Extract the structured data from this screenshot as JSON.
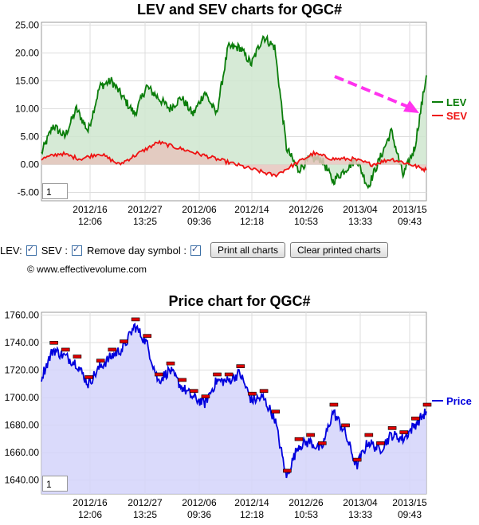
{
  "chart_data": [
    {
      "type": "area",
      "title": "LEV and SEV charts for QGC#",
      "ylim": [
        -6.5,
        25.5
      ],
      "yticks": [
        "25.00",
        "20.00",
        "15.00",
        "10.00",
        "5.00",
        "0.00",
        "-5.00"
      ],
      "ytick_values": [
        25,
        20,
        15,
        10,
        5,
        0,
        -5
      ],
      "xticks": [
        {
          "date": "2012/16",
          "time": "12:06"
        },
        {
          "date": "2012/27",
          "time": "13:25"
        },
        {
          "date": "2012/06",
          "time": "09:36"
        },
        {
          "date": "2012/14",
          "time": "12:18"
        },
        {
          "date": "2012/26",
          "time": "10:53"
        },
        {
          "date": "2013/04",
          "time": "13:33"
        },
        {
          "date": "2013/15",
          "time": "09:43"
        }
      ],
      "grid": true,
      "legend_position": "right",
      "zoom_value": "1",
      "series": [
        {
          "name": "LEV",
          "color": "#0a7d0a",
          "fill": "#cfe6cf",
          "x": [
            0,
            3,
            6,
            9,
            12,
            15,
            18,
            21,
            24,
            27,
            30,
            33,
            36,
            39,
            42,
            45,
            48,
            51,
            54,
            57,
            60,
            63,
            66,
            69,
            72,
            75,
            78,
            81,
            84,
            87,
            90,
            93,
            96,
            99
          ],
          "values": [
            2,
            7,
            5,
            10,
            6,
            14,
            15,
            12,
            9,
            14,
            12,
            10,
            12,
            9,
            13,
            9,
            21,
            21,
            18,
            23,
            21,
            3,
            -1,
            1,
            1,
            -3,
            -1,
            1,
            -4,
            1,
            6,
            -2,
            3,
            16
          ]
        },
        {
          "name": "SEV",
          "color": "#ee1111",
          "fill": "#e5c5bd",
          "x": [
            0,
            5,
            10,
            15,
            20,
            25,
            30,
            35,
            40,
            45,
            50,
            55,
            60,
            65,
            70,
            75,
            80,
            85,
            90,
            95,
            99
          ],
          "values": [
            1,
            2,
            1,
            2,
            0,
            2,
            4,
            3,
            2,
            1,
            0,
            -1,
            -2,
            0,
            2,
            1,
            1,
            0,
            1,
            0,
            -1
          ]
        }
      ]
    },
    {
      "type": "area",
      "title": "Price chart for QGC#",
      "ylim": [
        1630,
        1762
      ],
      "yticks": [
        "1760.00",
        "1740.00",
        "1720.00",
        "1700.00",
        "1680.00",
        "1660.00",
        "1640.00"
      ],
      "ytick_values": [
        1760,
        1740,
        1720,
        1700,
        1680,
        1660,
        1640
      ],
      "xticks": [
        {
          "date": "2012/16",
          "time": "12:06"
        },
        {
          "date": "2012/27",
          "time": "13:25"
        },
        {
          "date": "2012/06",
          "time": "09:36"
        },
        {
          "date": "2012/14",
          "time": "12:18"
        },
        {
          "date": "2012/26",
          "time": "10:53"
        },
        {
          "date": "2013/04",
          "time": "13:33"
        },
        {
          "date": "2013/15",
          "time": "09:43"
        }
      ],
      "grid": true,
      "legend_position": "right",
      "zoom_value": "1",
      "series": [
        {
          "name": "Price",
          "color": "#0000dd",
          "fill": "#d4d4fa",
          "x": [
            0,
            3,
            6,
            9,
            12,
            15,
            18,
            21,
            24,
            27,
            30,
            33,
            36,
            39,
            42,
            45,
            48,
            51,
            54,
            57,
            60,
            63,
            66,
            69,
            72,
            75,
            78,
            81,
            84,
            87,
            90,
            93,
            96,
            99
          ],
          "values": [
            1715,
            1735,
            1730,
            1725,
            1710,
            1722,
            1730,
            1736,
            1752,
            1740,
            1712,
            1720,
            1708,
            1700,
            1696,
            1712,
            1712,
            1718,
            1698,
            1700,
            1685,
            1642,
            1665,
            1668,
            1662,
            1690,
            1675,
            1650,
            1668,
            1662,
            1673,
            1670,
            1680,
            1690
          ]
        }
      ]
    }
  ],
  "controls": {
    "lev_label": "LEV:",
    "sev_label": "SEV :",
    "remove_label": "Remove day symbol :",
    "print_all": "Print all charts",
    "clear_printed": "Clear printed charts"
  },
  "copyright": "© www.effectivevolume.com"
}
